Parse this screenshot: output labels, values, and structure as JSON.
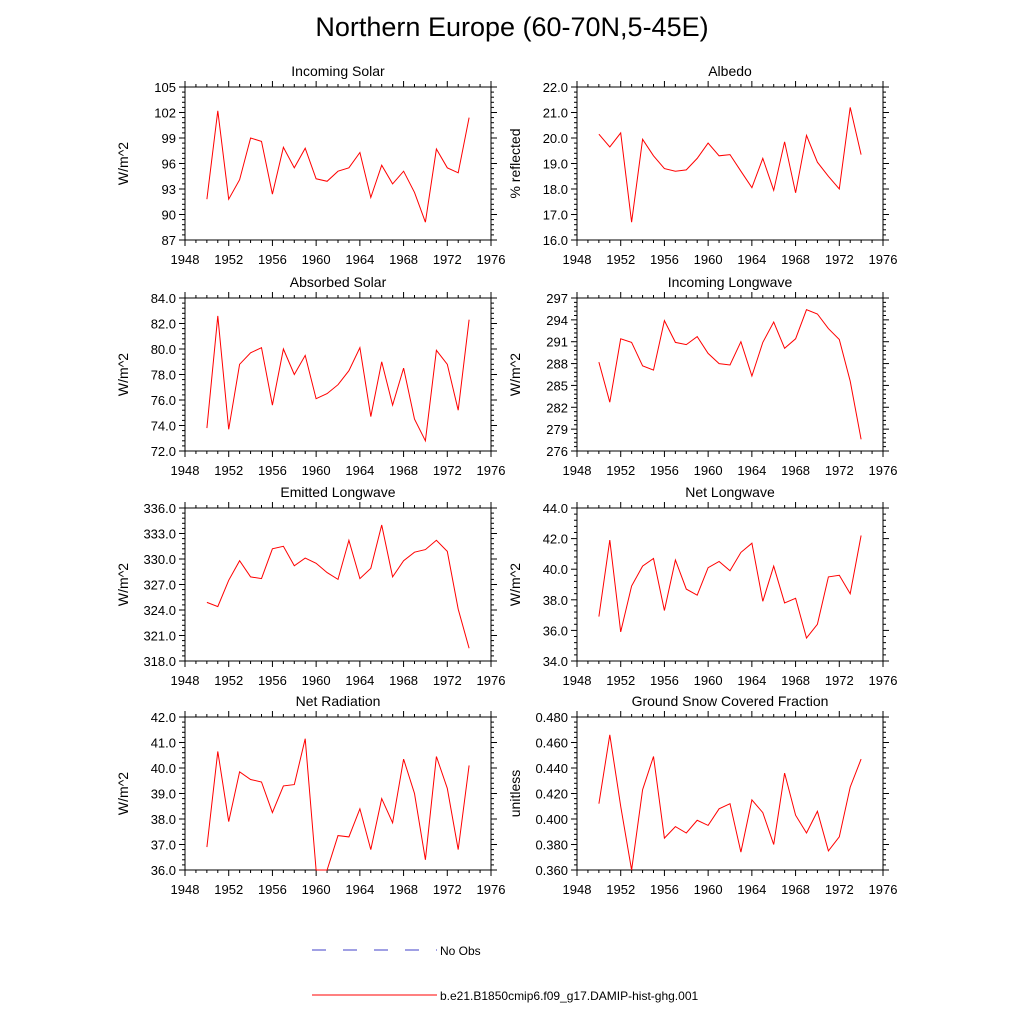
{
  "title": "Northern Europe (60-70N,5-45E)",
  "colors": {
    "model": "#ff0000",
    "obs": "#4040c8",
    "axis": "#000000"
  },
  "legend": {
    "obs_label": "No Obs",
    "model_label": "b.e21.B1850cmip6.f09_g17.DAMIP-hist-ghg.001"
  },
  "chart_data": [
    {
      "type": "line",
      "title": "Incoming Solar",
      "xlabel": "",
      "ylabel": "W/m^2",
      "xlim": [
        1948,
        1976
      ],
      "xticks": [
        1948,
        1952,
        1956,
        1960,
        1964,
        1968,
        1972,
        1976
      ],
      "ylim": [
        87,
        105
      ],
      "yticks": [
        87,
        90,
        93,
        96,
        99,
        102,
        105
      ],
      "ydec": 0,
      "series": [
        {
          "x": [
            1950,
            1951,
            1952,
            1953,
            1954,
            1955,
            1956,
            1957,
            1958,
            1959,
            1960,
            1961,
            1962,
            1963,
            1964,
            1965,
            1966,
            1967,
            1968,
            1969,
            1970,
            1971,
            1972,
            1973,
            1974
          ],
          "y": [
            91.8,
            102.2,
            91.8,
            94.1,
            99.0,
            98.6,
            92.4,
            97.9,
            95.5,
            97.8,
            94.2,
            93.9,
            95.1,
            95.5,
            97.3,
            92.0,
            95.8,
            93.6,
            95.1,
            92.6,
            89.1,
            97.7,
            95.5,
            94.9,
            101.4
          ]
        }
      ]
    },
    {
      "type": "line",
      "title": "Albedo",
      "xlabel": "",
      "ylabel": "% reflected",
      "xlim": [
        1948,
        1976
      ],
      "xticks": [
        1948,
        1952,
        1956,
        1960,
        1964,
        1968,
        1972,
        1976
      ],
      "ylim": [
        16.0,
        22.0
      ],
      "yticks": [
        16.0,
        17.0,
        18.0,
        19.0,
        20.0,
        21.0,
        22.0
      ],
      "ydec": 1,
      "series": [
        {
          "x": [
            1950,
            1951,
            1952,
            1953,
            1954,
            1955,
            1956,
            1957,
            1958,
            1959,
            1960,
            1961,
            1962,
            1963,
            1964,
            1965,
            1966,
            1967,
            1968,
            1969,
            1970,
            1971,
            1972,
            1973,
            1974
          ],
          "y": [
            20.15,
            19.65,
            20.2,
            16.7,
            19.95,
            19.3,
            18.8,
            18.7,
            18.75,
            19.2,
            19.8,
            19.3,
            19.35,
            18.7,
            18.05,
            19.2,
            17.95,
            19.85,
            17.85,
            20.1,
            19.05,
            18.5,
            18.0,
            21.2,
            19.35
          ]
        }
      ]
    },
    {
      "type": "line",
      "title": "Absorbed Solar",
      "xlabel": "",
      "ylabel": "W/m^2",
      "xlim": [
        1948,
        1976
      ],
      "xticks": [
        1948,
        1952,
        1956,
        1960,
        1964,
        1968,
        1972,
        1976
      ],
      "ylim": [
        72.0,
        84.0
      ],
      "yticks": [
        72.0,
        74.0,
        76.0,
        78.0,
        80.0,
        82.0,
        84.0
      ],
      "ydec": 1,
      "series": [
        {
          "x": [
            1950,
            1951,
            1952,
            1953,
            1954,
            1955,
            1956,
            1957,
            1958,
            1959,
            1960,
            1961,
            1962,
            1963,
            1964,
            1965,
            1966,
            1967,
            1968,
            1969,
            1970,
            1971,
            1972,
            1973,
            1974
          ],
          "y": [
            73.8,
            82.6,
            73.7,
            78.8,
            79.7,
            80.1,
            75.6,
            80.0,
            78.0,
            79.5,
            76.1,
            76.5,
            77.2,
            78.3,
            80.1,
            74.7,
            79.0,
            75.6,
            78.5,
            74.5,
            72.8,
            79.9,
            78.8,
            75.2,
            82.3
          ]
        }
      ]
    },
    {
      "type": "line",
      "title": "Incoming Longwave",
      "xlabel": "",
      "ylabel": "W/m^2",
      "xlim": [
        1948,
        1976
      ],
      "xticks": [
        1948,
        1952,
        1956,
        1960,
        1964,
        1968,
        1972,
        1976
      ],
      "ylim": [
        276,
        297
      ],
      "yticks": [
        276,
        279,
        282,
        285,
        288,
        291,
        294,
        297
      ],
      "ydec": 0,
      "series": [
        {
          "x": [
            1950,
            1951,
            1952,
            1953,
            1954,
            1955,
            1956,
            1957,
            1958,
            1959,
            1960,
            1961,
            1962,
            1963,
            1964,
            1965,
            1966,
            1967,
            1968,
            1969,
            1970,
            1971,
            1972,
            1973,
            1974
          ],
          "y": [
            288.2,
            282.7,
            291.4,
            290.9,
            287.7,
            287.1,
            293.9,
            290.9,
            290.6,
            291.7,
            289.4,
            288.0,
            287.8,
            291.0,
            286.3,
            290.9,
            293.7,
            290.1,
            291.4,
            295.4,
            294.8,
            292.8,
            291.3,
            285.6,
            277.6
          ]
        }
      ]
    },
    {
      "type": "line",
      "title": "Emitted Longwave",
      "xlabel": "",
      "ylabel": "W/m^2",
      "xlim": [
        1948,
        1976
      ],
      "xticks": [
        1948,
        1952,
        1956,
        1960,
        1964,
        1968,
        1972,
        1976
      ],
      "ylim": [
        318.0,
        336.0
      ],
      "yticks": [
        318.0,
        321.0,
        324.0,
        327.0,
        330.0,
        333.0,
        336.0
      ],
      "ydec": 1,
      "series": [
        {
          "x": [
            1950,
            1951,
            1952,
            1953,
            1954,
            1955,
            1956,
            1957,
            1958,
            1959,
            1960,
            1961,
            1962,
            1963,
            1964,
            1965,
            1966,
            1967,
            1968,
            1969,
            1970,
            1971,
            1972,
            1973,
            1974
          ],
          "y": [
            324.9,
            324.4,
            327.5,
            329.8,
            327.9,
            327.7,
            331.2,
            331.5,
            329.2,
            330.1,
            329.5,
            328.4,
            327.6,
            332.2,
            327.7,
            328.9,
            334.0,
            327.9,
            329.8,
            330.8,
            331.1,
            332.2,
            330.9,
            324.1,
            319.5
          ]
        }
      ]
    },
    {
      "type": "line",
      "title": "Net Longwave",
      "xlabel": "",
      "ylabel": "W/m^2",
      "xlim": [
        1948,
        1976
      ],
      "xticks": [
        1948,
        1952,
        1956,
        1960,
        1964,
        1968,
        1972,
        1976
      ],
      "ylim": [
        34.0,
        44.0
      ],
      "yticks": [
        34.0,
        36.0,
        38.0,
        40.0,
        42.0,
        44.0
      ],
      "ydec": 1,
      "series": [
        {
          "x": [
            1950,
            1951,
            1952,
            1953,
            1954,
            1955,
            1956,
            1957,
            1958,
            1959,
            1960,
            1961,
            1962,
            1963,
            1964,
            1965,
            1966,
            1967,
            1968,
            1969,
            1970,
            1971,
            1972,
            1973,
            1974
          ],
          "y": [
            36.9,
            41.9,
            35.9,
            38.9,
            40.2,
            40.7,
            37.3,
            40.6,
            38.7,
            38.3,
            40.1,
            40.5,
            39.9,
            41.1,
            41.7,
            37.9,
            40.2,
            37.8,
            38.1,
            35.5,
            36.4,
            39.5,
            39.6,
            38.4,
            42.2
          ]
        }
      ]
    },
    {
      "type": "line",
      "title": "Net Radiation",
      "xlabel": "",
      "ylabel": "W/m^2",
      "xlim": [
        1948,
        1976
      ],
      "xticks": [
        1948,
        1952,
        1956,
        1960,
        1964,
        1968,
        1972,
        1976
      ],
      "ylim": [
        36.0,
        42.0
      ],
      "yticks": [
        36.0,
        37.0,
        38.0,
        39.0,
        40.0,
        41.0,
        42.0
      ],
      "ydec": 1,
      "series": [
        {
          "x": [
            1950,
            1951,
            1952,
            1953,
            1954,
            1955,
            1956,
            1957,
            1958,
            1959,
            1960,
            1961,
            1962,
            1963,
            1964,
            1965,
            1966,
            1967,
            1968,
            1969,
            1970,
            1971,
            1972,
            1973,
            1974
          ],
          "y": [
            36.9,
            40.65,
            37.9,
            39.85,
            39.55,
            39.45,
            38.25,
            39.3,
            39.35,
            41.15,
            36.0,
            36.0,
            37.35,
            37.3,
            38.4,
            36.8,
            38.8,
            37.85,
            40.35,
            39.0,
            36.4,
            40.45,
            39.2,
            36.8,
            40.1
          ]
        }
      ]
    },
    {
      "type": "line",
      "title": "Ground Snow Covered Fraction",
      "xlabel": "",
      "ylabel": "unitless",
      "xlim": [
        1948,
        1976
      ],
      "xticks": [
        1948,
        1952,
        1956,
        1960,
        1964,
        1968,
        1972,
        1976
      ],
      "ylim": [
        0.36,
        0.48
      ],
      "yticks": [
        0.36,
        0.38,
        0.4,
        0.42,
        0.44,
        0.46,
        0.48
      ],
      "ydec": 3,
      "series": [
        {
          "x": [
            1950,
            1951,
            1952,
            1953,
            1954,
            1955,
            1956,
            1957,
            1958,
            1959,
            1960,
            1961,
            1962,
            1963,
            1964,
            1965,
            1966,
            1967,
            1968,
            1969,
            1970,
            1971,
            1972,
            1973,
            1974
          ],
          "y": [
            0.412,
            0.466,
            0.41,
            0.36,
            0.423,
            0.449,
            0.385,
            0.394,
            0.389,
            0.399,
            0.395,
            0.408,
            0.412,
            0.374,
            0.415,
            0.405,
            0.38,
            0.436,
            0.403,
            0.389,
            0.406,
            0.375,
            0.386,
            0.425,
            0.447
          ]
        }
      ]
    }
  ]
}
